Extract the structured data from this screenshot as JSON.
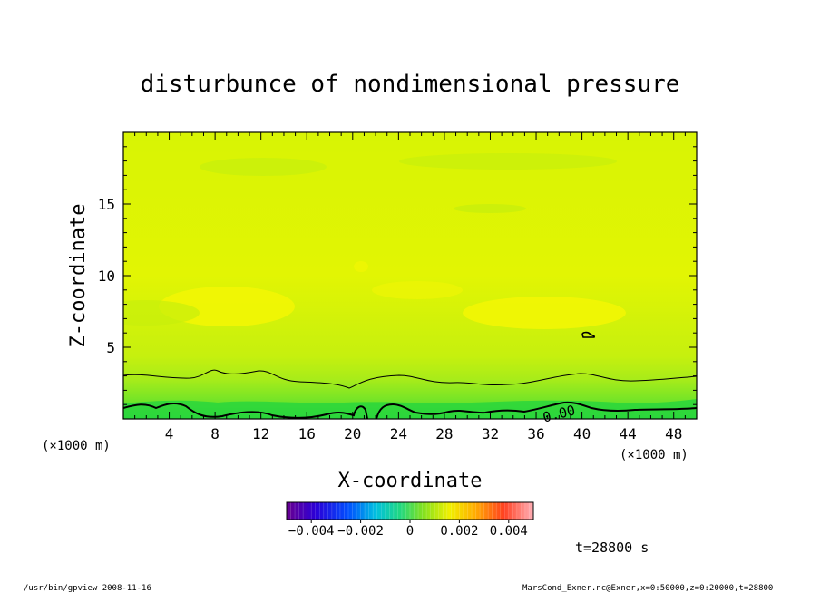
{
  "chart_data": {
    "type": "heatmap",
    "title": "disturbunce of nondimensional pressure",
    "xlabel": "X-coordinate",
    "ylabel": "Z-coordinate",
    "x_unit": "(×1000 m)",
    "y_unit": "(×1000 m)",
    "xlim": [
      0,
      50
    ],
    "ylim": [
      0,
      20
    ],
    "x_ticks": [
      4,
      8,
      12,
      16,
      20,
      24,
      28,
      32,
      36,
      40,
      44,
      48
    ],
    "y_ticks": [
      5,
      10,
      15
    ],
    "contour_label": "0.00",
    "colorbar": {
      "range": [
        -0.005,
        0.005
      ],
      "tick_values": [
        -0.004,
        -0.002,
        0,
        0.002,
        0.004
      ],
      "tick_labels": [
        "−0.004",
        "−0.002",
        "0",
        "0.002",
        "0.004"
      ]
    },
    "time_label": "t=28800 s",
    "colors": {
      "field_main": "#cdf30a",
      "field_bright": "#f4f603",
      "field_low": "#9cec1c",
      "field_bottom": "#38dd38"
    }
  },
  "footer": {
    "left": "/usr/bin/gpview   2008-11-16",
    "right": "MarsCond_Exner.nc@Exner,x=0:50000,z=0:20000,t=28800"
  }
}
